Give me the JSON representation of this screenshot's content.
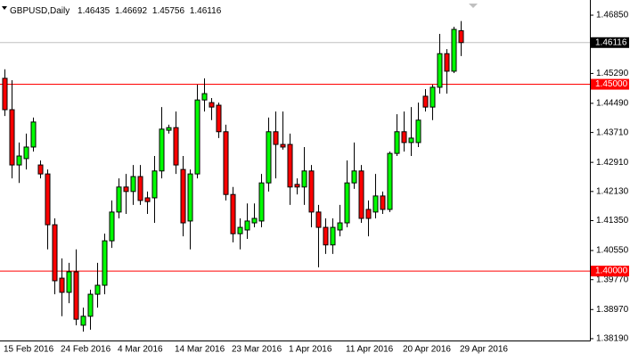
{
  "chart_data": {
    "type": "candlestick",
    "title": "GBPUSD,Daily",
    "up_color": "#00ff00",
    "down_color": "#ff0000",
    "categories": [
      "15 Feb 2016",
      null,
      null,
      null,
      null,
      null,
      null,
      null,
      "24 Feb 2016",
      null,
      null,
      null,
      null,
      null,
      null,
      null,
      "4 Mar 2016",
      null,
      null,
      null,
      null,
      null,
      null,
      null,
      "14 Mar 2016",
      null,
      null,
      null,
      null,
      null,
      null,
      null,
      "23 Mar 2016",
      null,
      null,
      null,
      null,
      null,
      null,
      null,
      "1 Apr 2016",
      null,
      null,
      null,
      null,
      null,
      null,
      null,
      "11 Apr 2016",
      null,
      null,
      null,
      null,
      null,
      null,
      null,
      "20 Apr 2016",
      null,
      null,
      null,
      null,
      null,
      null,
      null,
      "29 Apr 2016"
    ],
    "open": [
      1.4516,
      1.4432,
      1.4284,
      1.4301,
      1.4332,
      1.4284,
      1.426,
      1.4124,
      1.3981,
      1.3943,
      1.3998,
      1.3855,
      1.3879,
      1.3938,
      1.3962,
      1.4081,
      1.4158,
      1.4225,
      1.4213,
      1.4253,
      1.4196,
      1.4196,
      1.4268,
      1.4377,
      1.4384,
      1.4272,
      1.4134,
      1.426,
      1.4458,
      1.4451,
      1.4444,
      1.4373,
      1.4205,
      1.41,
      1.411,
      1.4129,
      1.4134,
      1.4236,
      1.4373,
      1.4339,
      1.4339,
      1.4232,
      1.4225,
      1.4268,
      1.4158,
      1.4117,
      1.407,
      1.411,
      1.4129,
      1.4236,
      1.4268,
      1.4165,
      1.4158,
      1.4201,
      1.4165,
      1.4315,
      1.4373,
      1.4344,
      1.4344,
      1.4468,
      1.4439,
      1.4492,
      1.4582,
      1.4535,
      1.46435
    ],
    "high": [
      1.454,
      1.4511,
      1.4344,
      1.4368,
      1.4411,
      1.4296,
      1.4272,
      1.4141,
      1.4034,
      1.4022,
      1.4058,
      1.3902,
      1.395,
      1.4022,
      1.41,
      1.4189,
      1.4248,
      1.426,
      1.4284,
      1.4284,
      1.4213,
      1.4308,
      1.4439,
      1.4392,
      1.4427,
      1.4308,
      1.4272,
      1.4499,
      1.4516,
      1.4463,
      1.4451,
      1.4392,
      1.4225,
      1.4141,
      1.4181,
      1.4181,
      1.426,
      1.4411,
      1.4427,
      1.4427,
      1.4368,
      1.4248,
      1.4332,
      1.4284,
      1.4177,
      1.4141,
      1.4141,
      1.4177,
      1.4296,
      1.4344,
      1.4284,
      1.4189,
      1.426,
      1.4213,
      1.432,
      1.442,
      1.4427,
      1.4439,
      1.4451,
      1.4487,
      1.4499,
      1.4635,
      1.4594,
      1.4654,
      1.46692
    ],
    "low": [
      1.4415,
      1.4248,
      1.4236,
      1.4272,
      1.432,
      1.4248,
      1.4058,
      1.3938,
      1.3879,
      1.3914,
      1.3855,
      1.3838,
      1.3843,
      1.3902,
      1.3938,
      1.4062,
      1.4141,
      1.4153,
      1.4177,
      1.4177,
      1.4153,
      1.4129,
      1.4248,
      1.4368,
      1.426,
      1.4093,
      1.4058,
      1.4248,
      1.4427,
      1.4404,
      1.4356,
      1.4189,
      1.4077,
      1.4058,
      1.4086,
      1.4117,
      1.4117,
      1.4213,
      1.4248,
      1.4325,
      1.4177,
      1.4205,
      1.4177,
      1.4117,
      1.401,
      1.4046,
      1.4046,
      1.4093,
      1.4117,
      1.422,
      1.4129,
      1.4093,
      1.4141,
      1.4153,
      1.4158,
      1.4308,
      1.432,
      1.4308,
      1.4332,
      1.4427,
      1.4404,
      1.4475,
      1.4475,
      1.453,
      1.45756
    ],
    "close": [
      1.4432,
      1.4284,
      1.4308,
      1.4332,
      1.4399,
      1.426,
      1.4124,
      1.3974,
      1.3943,
      1.3998,
      1.3871,
      1.3879,
      1.3938,
      1.3962,
      1.4081,
      1.4158,
      1.4225,
      1.4213,
      1.4253,
      1.4189,
      1.4186,
      1.4268,
      1.438,
      1.4384,
      1.4284,
      1.4129,
      1.426,
      1.4458,
      1.4475,
      1.4439,
      1.4373,
      1.4205,
      1.41,
      1.4117,
      1.4134,
      1.4141,
      1.4236,
      1.4373,
      1.4339,
      1.4332,
      1.4225,
      1.4225,
      1.4268,
      1.4158,
      1.4117,
      1.407,
      1.4117,
      1.4129,
      1.4236,
      1.4268,
      1.4141,
      1.4141,
      1.4201,
      1.4165,
      1.4315,
      1.4373,
      1.4344,
      1.4356,
      1.4404,
      1.4439,
      1.4492,
      1.4582,
      1.4535,
      1.4647,
      1.46116
    ],
    "ylim": [
      1.38141,
      1.47137
    ],
    "yticks": [
      {
        "value": 1.3819,
        "label": "1.38190"
      },
      {
        "value": 1.3897,
        "label": "1.38970"
      },
      {
        "value": 1.3977,
        "label": "1.39770"
      },
      {
        "value": 1.4055,
        "label": "1.40550"
      },
      {
        "value": 1.4135,
        "label": "1.41350"
      },
      {
        "value": 1.4213,
        "label": "1.42130"
      },
      {
        "value": 1.4291,
        "label": "1.42910"
      },
      {
        "value": 1.4371,
        "label": "1.43710"
      },
      {
        "value": 1.4449,
        "label": "1.44490"
      },
      {
        "value": 1.4529,
        "label": "1.45290"
      },
      {
        "value": 1.4685,
        "label": "1.46850"
      }
    ],
    "hlines": [
      {
        "value": 1.45,
        "label": "1.45000",
        "color": "#ff0000"
      },
      {
        "value": 1.4,
        "label": "1.40000",
        "color": "#ff0000"
      }
    ]
  }
}
